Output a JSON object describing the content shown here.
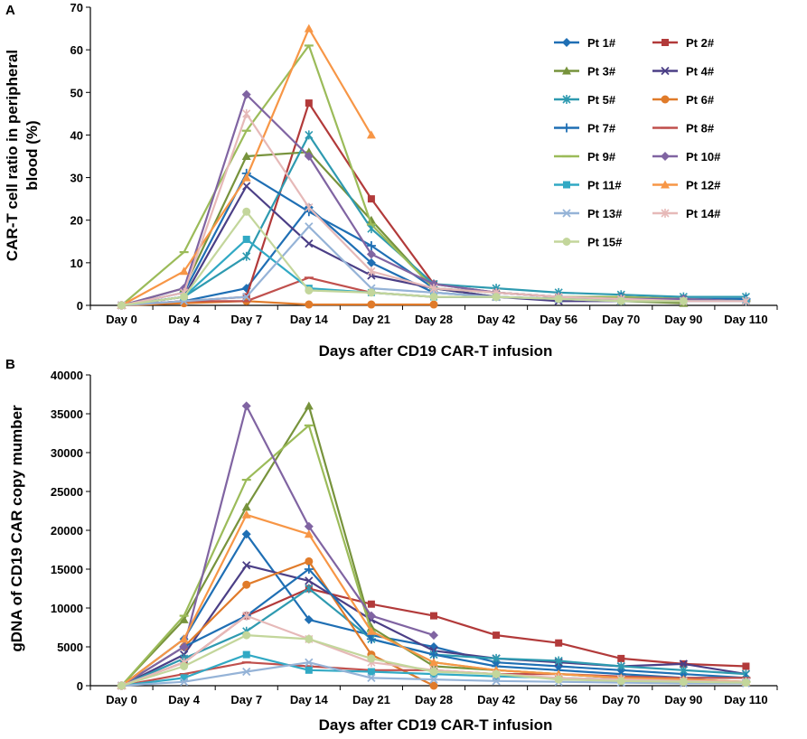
{
  "chart_data": [
    {
      "type": "line",
      "panel": "A",
      "xlabel": "Days after CD19 CAR-T infusion",
      "ylabel_lines": [
        "CAR-T cell ratio in peripheral",
        "blood (%)"
      ],
      "ylim": [
        0,
        70
      ],
      "yticks": [
        0,
        10,
        20,
        30,
        40,
        50,
        60,
        70
      ],
      "categories": [
        "Day 0",
        "Day 4",
        "Day 7",
        "Day 14",
        "Day 21",
        "Day 28",
        "Day 42",
        "Day 56",
        "Day 70",
        "Day 90",
        "Day 110"
      ],
      "legend_position": "top-right",
      "series": [
        {
          "name": "Pt 1#",
          "color": "#1F6FB4",
          "marker": "diamond",
          "values": [
            0,
            1,
            4,
            23,
            10,
            3,
            2,
            1.5,
            1,
            1,
            1
          ]
        },
        {
          "name": "Pt 2#",
          "color": "#B23A3A",
          "marker": "square",
          "values": [
            0,
            1,
            2,
            47.5,
            25,
            5,
            3,
            2,
            2,
            1.5,
            1
          ]
        },
        {
          "name": "Pt 3#",
          "color": "#77933C",
          "marker": "triangle",
          "values": [
            0,
            4,
            35,
            36,
            20,
            4,
            2,
            1.5,
            1,
            0.5,
            null
          ]
        },
        {
          "name": "Pt 4#",
          "color": "#4B3F86",
          "marker": "x",
          "values": [
            0,
            2,
            28,
            14.5,
            7,
            4,
            2,
            1,
            1,
            1,
            1
          ]
        },
        {
          "name": "Pt 5#",
          "color": "#2E9AB0",
          "marker": "star",
          "values": [
            0,
            2,
            11.5,
            40,
            18,
            5,
            4,
            3,
            2.5,
            2,
            2
          ]
        },
        {
          "name": "Pt 6#",
          "color": "#E07B2A",
          "marker": "circle",
          "values": [
            0,
            0.5,
            1,
            0.2,
            0.2,
            0.2,
            null,
            null,
            null,
            null,
            null
          ]
        },
        {
          "name": "Pt 7#",
          "color": "#1F6FB4",
          "marker": "plus",
          "values": [
            0,
            3,
            31,
            22,
            14,
            4,
            3,
            2,
            2,
            1.5,
            1.5
          ]
        },
        {
          "name": "Pt 8#",
          "color": "#C0504D",
          "marker": "dash",
          "values": [
            0,
            1,
            1,
            6.5,
            3,
            2,
            2,
            1.5,
            1,
            1,
            1
          ]
        },
        {
          "name": "Pt 9#",
          "color": "#9BBB59",
          "marker": "dash",
          "values": [
            0,
            12.5,
            41,
            61,
            19,
            4,
            3,
            2,
            2,
            1.5,
            1
          ]
        },
        {
          "name": "Pt 10#",
          "color": "#8064A2",
          "marker": "diamond",
          "values": [
            0,
            4,
            49.5,
            35,
            12,
            5,
            3,
            2,
            1.5,
            1.5,
            1
          ]
        },
        {
          "name": "Pt 11#",
          "color": "#31A9C4",
          "marker": "square",
          "values": [
            0,
            2,
            15.5,
            4,
            3,
            2,
            2,
            1.5,
            1,
            1,
            1
          ]
        },
        {
          "name": "Pt 12#",
          "color": "#F79646",
          "marker": "triangle",
          "values": [
            0,
            8,
            30,
            65,
            40,
            null,
            null,
            null,
            null,
            null,
            null
          ]
        },
        {
          "name": "Pt 13#",
          "color": "#95B3D7",
          "marker": "x",
          "values": [
            0,
            1,
            2,
            18.5,
            4,
            3,
            2,
            1.5,
            1,
            1,
            1
          ]
        },
        {
          "name": "Pt 14#",
          "color": "#E6B9B8",
          "marker": "star",
          "values": [
            0,
            3,
            45,
            23,
            8,
            4,
            3,
            2,
            1.5,
            1,
            1
          ]
        },
        {
          "name": "Pt 15#",
          "color": "#C3D69B",
          "marker": "circle",
          "values": [
            0,
            2,
            22,
            3.5,
            3,
            2,
            2,
            1.5,
            1,
            1,
            null
          ]
        }
      ]
    },
    {
      "type": "line",
      "panel": "B",
      "xlabel": "Days after CD19 CAR-T infusion",
      "ylabel_lines": [
        "gDNA of CD19 CAR copy mumber"
      ],
      "ylim": [
        0,
        40000
      ],
      "yticks": [
        0,
        5000,
        10000,
        15000,
        20000,
        25000,
        30000,
        35000,
        40000
      ],
      "categories": [
        "Day 0",
        "Day 4",
        "Day 7",
        "Day 14",
        "Day 21",
        "Day 28",
        "Day 42",
        "Day 56",
        "Day 70",
        "Day 90",
        "Day 110"
      ],
      "series": [
        {
          "name": "Pt 1#",
          "color": "#1F6FB4",
          "marker": "diamond",
          "values": [
            0,
            6000,
            19500,
            8500,
            6500,
            5000,
            3000,
            2500,
            2000,
            1500,
            1000
          ]
        },
        {
          "name": "Pt 2#",
          "color": "#B23A3A",
          "marker": "square",
          "values": [
            0,
            3000,
            9000,
            12500,
            10500,
            9000,
            6500,
            5500,
            3500,
            2800,
            2500
          ]
        },
        {
          "name": "Pt 3#",
          "color": "#77933C",
          "marker": "triangle",
          "values": [
            0,
            8500,
            23000,
            36000,
            7500,
            2500,
            2000,
            1500,
            1000,
            800,
            500
          ]
        },
        {
          "name": "Pt 4#",
          "color": "#4B3F86",
          "marker": "x",
          "values": [
            0,
            4000,
            15500,
            13500,
            8500,
            4500,
            3500,
            3000,
            2500,
            2800,
            1500
          ]
        },
        {
          "name": "Pt 5#",
          "color": "#2E9AB0",
          "marker": "star",
          "values": [
            0,
            3500,
            7000,
            12500,
            6000,
            4000,
            3500,
            3200,
            2500,
            2000,
            1500
          ]
        },
        {
          "name": "Pt 6#",
          "color": "#E07B2A",
          "marker": "circle",
          "values": [
            0,
            5000,
            13000,
            16000,
            4000,
            0,
            null,
            null,
            null,
            null,
            null
          ]
        },
        {
          "name": "Pt 7#",
          "color": "#1F6FB4",
          "marker": "plus",
          "values": [
            0,
            5000,
            9000,
            15000,
            6000,
            4000,
            2500,
            2000,
            1500,
            1000,
            1000
          ]
        },
        {
          "name": "Pt 8#",
          "color": "#C0504D",
          "marker": "dash",
          "values": [
            0,
            1500,
            3000,
            2500,
            2000,
            2000,
            1500,
            1500,
            1200,
            1000,
            1000
          ]
        },
        {
          "name": "Pt 9#",
          "color": "#9BBB59",
          "marker": "dash",
          "values": [
            0,
            9000,
            26500,
            33500,
            7000,
            3000,
            2000,
            1500,
            1000,
            800,
            500
          ]
        },
        {
          "name": "Pt 10#",
          "color": "#8064A2",
          "marker": "diamond",
          "values": [
            0,
            5000,
            36000,
            20500,
            9000,
            6500,
            null,
            null,
            null,
            null,
            null
          ]
        },
        {
          "name": "Pt 11#",
          "color": "#31A9C4",
          "marker": "square",
          "values": [
            0,
            1000,
            4000,
            2000,
            1800,
            1500,
            1200,
            1000,
            800,
            600,
            500
          ]
        },
        {
          "name": "Pt 12#",
          "color": "#F79646",
          "marker": "triangle",
          "values": [
            0,
            6000,
            22000,
            19500,
            7000,
            3000,
            2000,
            1500,
            1000,
            800,
            500
          ]
        },
        {
          "name": "Pt 13#",
          "color": "#95B3D7",
          "marker": "x",
          "values": [
            0,
            500,
            1800,
            3000,
            1000,
            800,
            600,
            500,
            400,
            300,
            300
          ]
        },
        {
          "name": "Pt 14#",
          "color": "#E6B9B8",
          "marker": "star",
          "values": [
            0,
            3000,
            9000,
            6000,
            3000,
            2000,
            1500,
            1000,
            800,
            600,
            500
          ]
        },
        {
          "name": "Pt 15#",
          "color": "#C3D69B",
          "marker": "circle",
          "values": [
            0,
            2500,
            6500,
            6000,
            3500,
            1800,
            1500,
            800,
            600,
            500,
            400
          ]
        }
      ]
    }
  ]
}
